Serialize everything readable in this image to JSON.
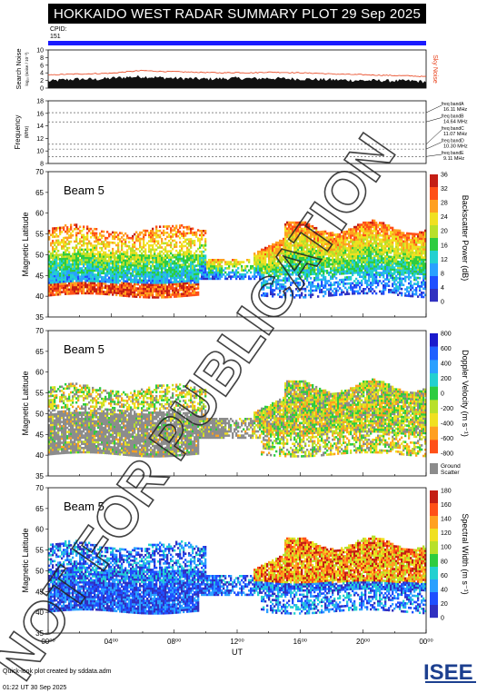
{
  "header": {
    "title": "HOKKAIDO WEST RADAR SUMMARY PLOT",
    "date": "29 Sep 2025",
    "cpid_label": "CPID:",
    "cpid_value": "151"
  },
  "watermark": "NOT FOR PUBLICATION",
  "footer": {
    "created_by": "Quick-look plot created by sddata.adm",
    "timestamp": "01:22 UT 30 Sep 2025"
  },
  "logo": {
    "text": "ISEE"
  },
  "colors": {
    "cpid_bar": "#1a1aff",
    "noise_line": "#e8411a",
    "ground_scatter": "#8c8c8c"
  },
  "chart_data": [
    {
      "type": "area",
      "panel": "noise",
      "ylabel": "Search Noise",
      "ylabel_sub": "log₁₀ (noise / 10⁻³)",
      "right_label": "Sky Noise",
      "ylim": [
        0,
        10
      ],
      "yticks": [
        0,
        2,
        4,
        6,
        8,
        10
      ],
      "series": [
        {
          "name": "Sky Noise",
          "x": [
            0,
            1,
            2,
            3,
            4,
            5,
            6,
            7,
            8,
            9,
            10,
            11,
            12,
            13,
            14,
            15,
            16,
            17,
            18,
            19,
            20,
            21,
            22,
            23,
            24
          ],
          "values": [
            3.4,
            3.6,
            3.7,
            3.8,
            3.9,
            4.3,
            4.6,
            4.4,
            4.3,
            4.2,
            4.1,
            4.0,
            4.1,
            4.0,
            4.2,
            4.1,
            4.0,
            3.9,
            3.7,
            3.6,
            3.5,
            3.4,
            3.3,
            3.2,
            3.0
          ]
        },
        {
          "name": "Search Noise",
          "x": [
            0,
            1,
            2,
            3,
            4,
            5,
            6,
            7,
            8,
            9,
            10,
            11,
            12,
            13,
            14,
            15,
            16,
            17,
            18,
            19,
            20,
            21,
            22,
            23,
            24
          ],
          "values": [
            1.8,
            2.2,
            2.4,
            2.3,
            2.6,
            2.9,
            3.0,
            2.8,
            2.6,
            2.5,
            2.4,
            2.5,
            2.6,
            2.5,
            2.6,
            2.5,
            2.4,
            2.3,
            2.2,
            2.1,
            2.0,
            2.0,
            1.9,
            1.9,
            1.7
          ]
        }
      ]
    },
    {
      "type": "line",
      "panel": "frequency",
      "ylabel": "Frequency",
      "ylabel_sub": "(MHz)",
      "ylim": [
        8,
        18
      ],
      "yticks": [
        8,
        10,
        12,
        14,
        16,
        18
      ],
      "bands": [
        {
          "label": "freq bandA",
          "mhz": "16.11 MHz",
          "value": 16.11
        },
        {
          "label": "freq bandB",
          "mhz": "14.64 MHz",
          "value": 14.64
        },
        {
          "label": "freq bandC",
          "mhz": "11.07 MHz",
          "value": 11.07
        },
        {
          "label": "freq bandD",
          "mhz": "10.30 MHz",
          "value": 10.3
        },
        {
          "label": "freq bandE",
          "mhz": "9.11 MHz",
          "value": 9.11
        }
      ]
    },
    {
      "type": "heatmap",
      "panel": "power",
      "beam_label": "Beam 5",
      "ylabel": "Magnetic Latitude",
      "ylim": [
        35,
        70
      ],
      "yticks": [
        35,
        40,
        45,
        50,
        55,
        60,
        65,
        70
      ],
      "colorbar": {
        "label": "Backscatter Power (dB)",
        "ticks": [
          "0",
          "4",
          "8",
          "12",
          "16",
          "20",
          "24",
          "28",
          "32",
          "36"
        ]
      }
    },
    {
      "type": "heatmap",
      "panel": "velocity",
      "beam_label": "Beam 5",
      "ylabel": "Magnetic Latitude",
      "ylim": [
        35,
        70
      ],
      "yticks": [
        35,
        40,
        45,
        50,
        55,
        60,
        65,
        70
      ],
      "colorbar": {
        "label": "Doppler Velocity (m s⁻¹)",
        "ticks": [
          "800",
          "600",
          "400",
          "200",
          "0",
          "-200",
          "-400",
          "-600",
          "-800"
        ]
      },
      "ground_scatter_label": [
        "Ground",
        "Scatter"
      ]
    },
    {
      "type": "heatmap",
      "panel": "width",
      "beam_label": "Beam 5",
      "ylabel": "Magnetic Latitude",
      "ylim": [
        35,
        70
      ],
      "yticks": [
        35,
        40,
        45,
        50,
        55,
        60,
        65,
        70
      ],
      "xlabel": "UT",
      "xticks": [
        "00⁰⁰",
        "04⁰⁰",
        "08⁰⁰",
        "12⁰⁰",
        "16⁰⁰",
        "20⁰⁰",
        "00⁰⁰"
      ],
      "colorbar": {
        "label": "Spectral Width (m s⁻¹)",
        "ticks": [
          "0",
          "20",
          "40",
          "60",
          "80",
          "100",
          "120",
          "140",
          "160",
          "180"
        ]
      }
    }
  ]
}
